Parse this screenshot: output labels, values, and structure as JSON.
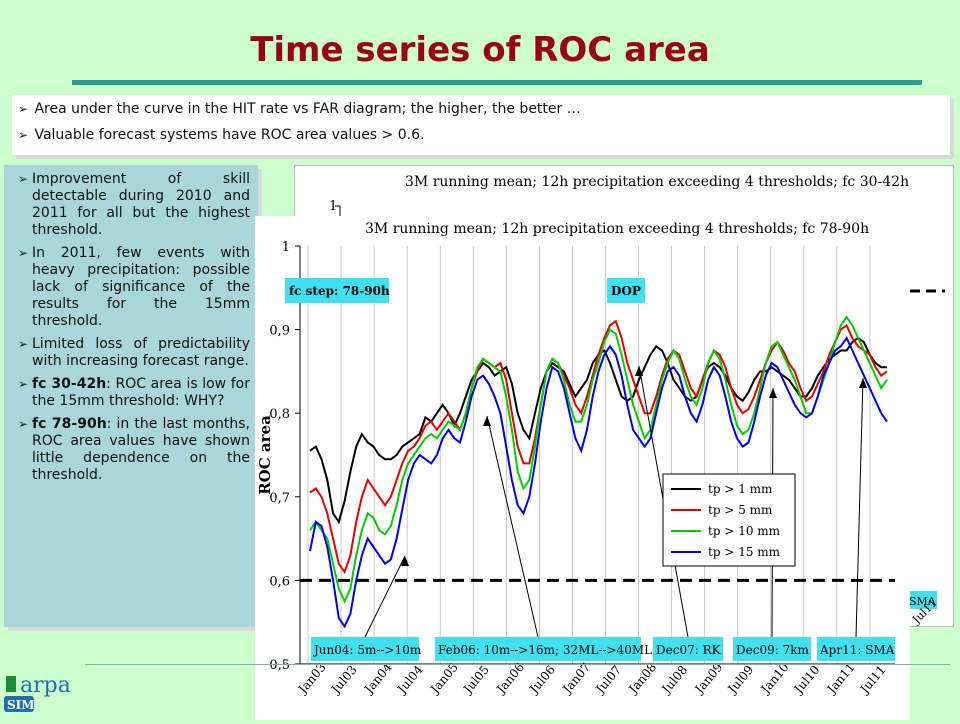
{
  "slide": {
    "title": "Time series of ROC area",
    "top_bullets": [
      "Area under the curve in the HIT rate vs FAR diagram; the higher, the better …",
      "Valuable forecast systems have ROC area values > 0.6."
    ],
    "side_bullets": [
      {
        "bold": "",
        "text": "Improvement of skill detectable during 2010 and 2011 for all but the highest threshold."
      },
      {
        "bold": "",
        "text": "In 2011, few events with heavy precipitation: possible lack of significance of the results for the 15mm threshold."
      },
      {
        "bold": "",
        "text": "Limited loss of predictability with increasing forecast range."
      },
      {
        "bold": "fc 30-42h",
        "text": ": ROC area is low for the 15mm threshold: WHY?"
      },
      {
        "bold": "fc 78-90h",
        "text": ": in the last months, ROC area values have shown little dependence on the threshold."
      }
    ],
    "logo_text": "arpa",
    "logo_sub": "SIM",
    "colors": {
      "title": "#99001a",
      "background": "#ccffcc",
      "side_panel": "#a9d6d8",
      "rule": "#2a9d8f"
    }
  },
  "chart_back": {
    "title": "3M running mean; 12h precipitation exceeding 4 thresholds; fc 30-42h",
    "y_tick_top": "1",
    "visible_label_right": "SMA",
    "visible_tick_right": "Jul11"
  },
  "chart_data": {
    "type": "line",
    "title": "3M running mean; 12h precipitation exceeding 4 thresholds; fc 78-90h",
    "ylabel": "ROC area",
    "xlabel": "",
    "ylim": [
      0.5,
      1.0
    ],
    "y_ticks": [
      "0,5",
      "0,6",
      "0,7",
      "0,8",
      "0,9",
      "1"
    ],
    "x_ticks": [
      "Jan03",
      "Jul03",
      "Jan04",
      "Jul04",
      "Jan05",
      "Jul05",
      "Jan06",
      "Jul06",
      "Jan07",
      "Jul07",
      "Jan08",
      "Jul08",
      "Jan09",
      "Jul09",
      "Jan10",
      "Jul10",
      "Jan11",
      "Jul11"
    ],
    "x_start_index": 0,
    "reference_line": 0.6,
    "legend_placement": "bottom-right",
    "series": [
      {
        "name": "tp > 1 mm",
        "color": "#000000",
        "values": [
          0.755,
          0.76,
          0.745,
          0.72,
          0.68,
          0.67,
          0.695,
          0.73,
          0.76,
          0.775,
          0.765,
          0.76,
          0.75,
          0.745,
          0.745,
          0.75,
          0.76,
          0.765,
          0.77,
          0.775,
          0.795,
          0.79,
          0.8,
          0.81,
          0.8,
          0.785,
          0.8,
          0.82,
          0.84,
          0.85,
          0.86,
          0.855,
          0.845,
          0.85,
          0.855,
          0.835,
          0.8,
          0.78,
          0.77,
          0.8,
          0.83,
          0.85,
          0.86,
          0.855,
          0.85,
          0.835,
          0.82,
          0.83,
          0.84,
          0.86,
          0.87,
          0.875,
          0.86,
          0.84,
          0.82,
          0.815,
          0.82,
          0.84,
          0.855,
          0.87,
          0.88,
          0.875,
          0.86,
          0.84,
          0.83,
          0.82,
          0.815,
          0.82,
          0.84,
          0.855,
          0.86,
          0.855,
          0.845,
          0.83,
          0.82,
          0.815,
          0.825,
          0.84,
          0.85,
          0.85,
          0.855,
          0.85,
          0.845,
          0.84,
          0.83,
          0.82,
          0.82,
          0.83,
          0.845,
          0.855,
          0.865,
          0.87,
          0.875,
          0.875,
          0.885,
          0.89,
          0.885,
          0.87,
          0.86,
          0.855,
          0.855
        ]
      },
      {
        "name": "tp > 5 mm",
        "color": "#e00000",
        "values": [
          0.705,
          0.71,
          0.7,
          0.68,
          0.65,
          0.62,
          0.61,
          0.63,
          0.67,
          0.7,
          0.72,
          0.71,
          0.7,
          0.69,
          0.7,
          0.72,
          0.74,
          0.755,
          0.76,
          0.77,
          0.785,
          0.79,
          0.78,
          0.79,
          0.8,
          0.79,
          0.78,
          0.8,
          0.83,
          0.85,
          0.865,
          0.86,
          0.855,
          0.86,
          0.84,
          0.8,
          0.76,
          0.74,
          0.74,
          0.77,
          0.81,
          0.85,
          0.865,
          0.86,
          0.845,
          0.83,
          0.81,
          0.8,
          0.82,
          0.845,
          0.87,
          0.89,
          0.905,
          0.91,
          0.89,
          0.86,
          0.84,
          0.82,
          0.8,
          0.8,
          0.82,
          0.845,
          0.865,
          0.875,
          0.87,
          0.85,
          0.83,
          0.82,
          0.84,
          0.86,
          0.875,
          0.87,
          0.855,
          0.83,
          0.81,
          0.8,
          0.805,
          0.82,
          0.84,
          0.86,
          0.875,
          0.885,
          0.875,
          0.86,
          0.85,
          0.83,
          0.815,
          0.82,
          0.835,
          0.85,
          0.87,
          0.885,
          0.9,
          0.905,
          0.89,
          0.88,
          0.875,
          0.87,
          0.855,
          0.845,
          0.85
        ]
      },
      {
        "name": "tp > 10 mm",
        "color": "#00cc00",
        "values": [
          0.66,
          0.67,
          0.66,
          0.65,
          0.62,
          0.59,
          0.575,
          0.59,
          0.63,
          0.66,
          0.68,
          0.675,
          0.66,
          0.655,
          0.665,
          0.69,
          0.72,
          0.74,
          0.75,
          0.76,
          0.77,
          0.775,
          0.77,
          0.78,
          0.79,
          0.785,
          0.78,
          0.8,
          0.83,
          0.855,
          0.865,
          0.86,
          0.855,
          0.85,
          0.82,
          0.78,
          0.73,
          0.71,
          0.72,
          0.76,
          0.81,
          0.85,
          0.865,
          0.86,
          0.84,
          0.81,
          0.79,
          0.79,
          0.81,
          0.84,
          0.86,
          0.885,
          0.9,
          0.895,
          0.87,
          0.84,
          0.81,
          0.79,
          0.77,
          0.78,
          0.81,
          0.84,
          0.86,
          0.875,
          0.865,
          0.84,
          0.82,
          0.81,
          0.83,
          0.86,
          0.875,
          0.865,
          0.84,
          0.81,
          0.785,
          0.775,
          0.78,
          0.8,
          0.83,
          0.86,
          0.88,
          0.885,
          0.87,
          0.855,
          0.84,
          0.82,
          0.8,
          0.8,
          0.82,
          0.84,
          0.86,
          0.885,
          0.905,
          0.915,
          0.905,
          0.89,
          0.875,
          0.86,
          0.845,
          0.83,
          0.84
        ]
      },
      {
        "name": "tp > 15 mm",
        "color": "#0000e0",
        "values": [
          0.635,
          0.67,
          0.665,
          0.64,
          0.6,
          0.555,
          0.545,
          0.56,
          0.6,
          0.63,
          0.65,
          0.64,
          0.63,
          0.62,
          0.625,
          0.65,
          0.685,
          0.72,
          0.74,
          0.75,
          0.745,
          0.74,
          0.75,
          0.77,
          0.78,
          0.77,
          0.765,
          0.79,
          0.82,
          0.84,
          0.845,
          0.835,
          0.82,
          0.8,
          0.76,
          0.72,
          0.69,
          0.68,
          0.7,
          0.74,
          0.79,
          0.83,
          0.855,
          0.85,
          0.83,
          0.8,
          0.77,
          0.755,
          0.78,
          0.82,
          0.85,
          0.87,
          0.88,
          0.87,
          0.845,
          0.81,
          0.78,
          0.77,
          0.76,
          0.77,
          0.8,
          0.83,
          0.85,
          0.855,
          0.845,
          0.82,
          0.8,
          0.79,
          0.81,
          0.84,
          0.855,
          0.845,
          0.82,
          0.79,
          0.77,
          0.76,
          0.765,
          0.79,
          0.82,
          0.845,
          0.86,
          0.855,
          0.84,
          0.825,
          0.81,
          0.8,
          0.795,
          0.8,
          0.82,
          0.845,
          0.86,
          0.875,
          0.88,
          0.89,
          0.875,
          0.86,
          0.845,
          0.83,
          0.815,
          0.8,
          0.79
        ]
      }
    ],
    "annotations": [
      {
        "label": "fc step: 78-90h",
        "kind": "box"
      },
      {
        "label": "DOP",
        "kind": "box"
      },
      {
        "label": "Jun04: 5m-->10m",
        "kind": "event"
      },
      {
        "label": "Feb06: 10m-->16m; 32ML-->40ML",
        "kind": "event"
      },
      {
        "label": "Dec07: RK",
        "kind": "event"
      },
      {
        "label": "Dec09: 7km",
        "kind": "event"
      },
      {
        "label": "Apr11: SMA",
        "kind": "event"
      }
    ]
  }
}
